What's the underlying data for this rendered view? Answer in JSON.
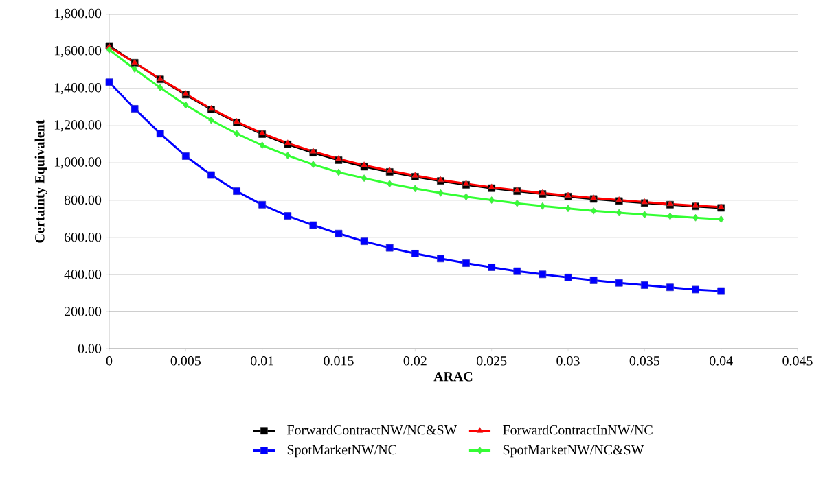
{
  "chart_data": {
    "type": "line",
    "xlabel": "ARAC",
    "ylabel": "Certainty Equivalent",
    "x": [
      0,
      0.001667,
      0.003333,
      0.005,
      0.006667,
      0.008333,
      0.01,
      0.011667,
      0.013333,
      0.015,
      0.016667,
      0.018333,
      0.02,
      0.021667,
      0.023333,
      0.025,
      0.026667,
      0.028333,
      0.03,
      0.031667,
      0.033333,
      0.035,
      0.036667,
      0.038333,
      0.04
    ],
    "series": [
      {
        "name": "ForwardContractNW/NC&SW",
        "color": "#000000",
        "marker": "square",
        "values": [
          1630,
          1540,
          1450,
          1368,
          1288,
          1218,
          1155,
          1100,
          1055,
          1015,
          980,
          952,
          926,
          903,
          882,
          864,
          848,
          833,
          819,
          806,
          795,
          784,
          775,
          766,
          758
        ]
      },
      {
        "name": "ForwardContractInNW/NC",
        "color": "#ff0000",
        "marker": "triangle",
        "values": [
          1625,
          1540,
          1452,
          1372,
          1292,
          1222,
          1160,
          1106,
          1062,
          1022,
          988,
          958,
          932,
          908,
          888,
          869,
          853,
          838,
          824,
          811,
          800,
          789,
          779,
          770,
          762
        ]
      },
      {
        "name": "SpotMarketNW/NC",
        "color": "#0000ff",
        "marker": "square",
        "values": [
          1435,
          1292,
          1158,
          1037,
          935,
          848,
          775,
          715,
          665,
          620,
          578,
          543,
          512,
          485,
          460,
          438,
          417,
          400,
          383,
          368,
          354,
          342,
          330,
          318,
          310
        ]
      },
      {
        "name": "SpotMarketNW/NC&SW",
        "color": "#33ff33",
        "marker": "diamond",
        "values": [
          1610,
          1505,
          1405,
          1312,
          1230,
          1158,
          1095,
          1040,
          992,
          950,
          918,
          888,
          862,
          838,
          818,
          800,
          783,
          768,
          755,
          742,
          732,
          722,
          713,
          705,
          697
        ]
      }
    ],
    "xlim": [
      0,
      0.045
    ],
    "xticks": [
      0,
      0.005,
      0.01,
      0.015,
      0.02,
      0.025,
      0.03,
      0.035,
      0.04,
      0.045
    ],
    "ylim": [
      0,
      1800
    ],
    "yticks": [
      {
        "value": 0,
        "label": "0.00"
      },
      {
        "value": 200,
        "label": "200.00"
      },
      {
        "value": 400,
        "label": "400.00"
      },
      {
        "value": 600,
        "label": "600.00"
      },
      {
        "value": 800,
        "label": "800.00"
      },
      {
        "value": 1000,
        "label": "1,000.00"
      },
      {
        "value": 1200,
        "label": "1,200.00"
      },
      {
        "value": 1400,
        "label": "1,400.00"
      },
      {
        "value": 1600,
        "label": "1,600.00"
      },
      {
        "value": 1800,
        "label": "1,800.00"
      }
    ],
    "grid": "y",
    "legend": "bottom",
    "line_style": "solid"
  }
}
